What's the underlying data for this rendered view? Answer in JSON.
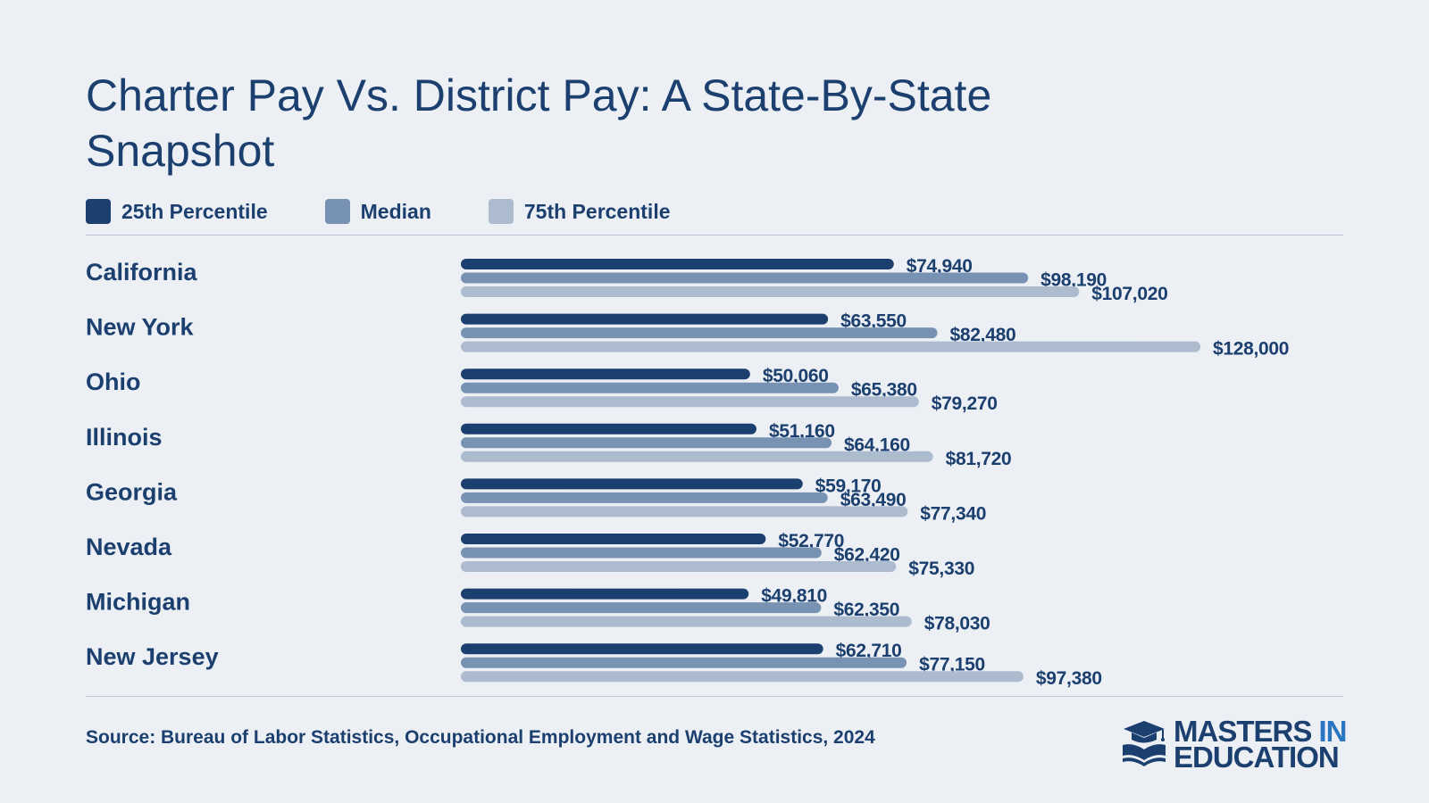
{
  "colors": {
    "background": "#eceff4",
    "text": "#1b3f6e",
    "p25": "#1b3f6e",
    "median": "#7792b2",
    "p75": "#adbbcf",
    "logo_accent": "#2a75c2"
  },
  "chart_data": {
    "type": "bar",
    "orientation": "horizontal",
    "title": "Charter Pay Vs. District Pay: A State-By-State Snapshot",
    "categories": [
      "California",
      "New York",
      "Ohio",
      "Illinois",
      "Georgia",
      "Nevada",
      "Michigan",
      "New Jersey"
    ],
    "series": [
      {
        "name": "25th Percentile",
        "color": "#1b3f6e",
        "values": [
          74940,
          63550,
          50060,
          51160,
          59170,
          52770,
          49810,
          62710
        ],
        "labels": [
          "$74,940",
          "$63,550",
          "$50,060",
          "$51,160",
          "$59,170",
          "$52,770",
          "$49,810",
          "$62,710"
        ]
      },
      {
        "name": "Median",
        "color": "#7792b2",
        "values": [
          98190,
          82480,
          65380,
          64160,
          63490,
          62420,
          62350,
          77150
        ],
        "labels": [
          "$98,190",
          "$82,480",
          "$65,380",
          "$64,160",
          "$63,490",
          "$62,420",
          "$62,350",
          "$77,150"
        ]
      },
      {
        "name": "75th Percentile",
        "color": "#adbbcf",
        "values": [
          107020,
          128000,
          79270,
          81720,
          77340,
          75330,
          78030,
          97380
        ],
        "labels": [
          "$107,020",
          "$128,000",
          "$79,270",
          "$81,720",
          "$77,340",
          "$75,330",
          "$78,030",
          "$97,380"
        ]
      }
    ],
    "xlim": [
      0,
      128000
    ],
    "grid": false,
    "legend_position": "top-left"
  },
  "source": "Source: Bureau of Labor Statistics, Occupational Employment and Wage Statistics, 2024",
  "logo": {
    "line1_a": "MASTERS",
    "line1_b": "IN",
    "line2": "EDUCATION",
    "icon": "graduation-cap-book-icon"
  }
}
